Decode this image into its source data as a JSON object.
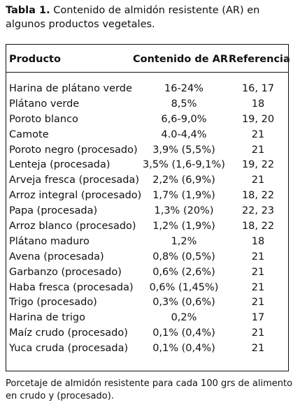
{
  "caption": {
    "label": "Tabla 1.",
    "text": "Contenido de almidón resistente (AR) en algunos productos vegetales."
  },
  "table": {
    "headers": {
      "product": "Producto",
      "content": "Contenido de AR",
      "reference": "Referencia"
    },
    "rows": [
      {
        "product": "Harina de plátano verde",
        "content": "16-24%",
        "reference": "16, 17"
      },
      {
        "product": "Plátano verde",
        "content": "8,5%",
        "reference": "18"
      },
      {
        "product": "Poroto blanco",
        "content": "6,6-9,0%",
        "reference": "19, 20"
      },
      {
        "product": "Camote",
        "content": "4.0-4,4%",
        "reference": "21"
      },
      {
        "product": "Poroto negro (procesado)",
        "content": "3,9% (5,5%)",
        "reference": "21"
      },
      {
        "product": "Lenteja (procesada)",
        "content": "3,5% (1,6-9,1%)",
        "reference": "19, 22"
      },
      {
        "product": "Arveja fresca (procesada)",
        "content": "2,2% (6,9%)",
        "reference": "21"
      },
      {
        "product": "Arroz integral (procesado)",
        "content": "1,7% (1,9%)",
        "reference": "18, 22"
      },
      {
        "product": "Papa (procesada)",
        "content": "1,3% (20%)",
        "reference": "22, 23"
      },
      {
        "product": "Arroz blanco (procesado)",
        "content": "1,2% (1,9%)",
        "reference": "18, 22"
      },
      {
        "product": "Plátano maduro",
        "content": "1,2%",
        "reference": "18"
      },
      {
        "product": "Avena (procesada)",
        "content": "0,8% (0,5%)",
        "reference": "21"
      },
      {
        "product": "Garbanzo (procesado)",
        "content": "0,6% (2,6%)",
        "reference": "21"
      },
      {
        "product": "Haba fresca (procesada)",
        "content": "0,6% (1,45%)",
        "reference": "21"
      },
      {
        "product": "Trigo (procesado)",
        "content": "0,3% (0,6%)",
        "reference": "21"
      },
      {
        "product": "Harina de trigo",
        "content": "0,2%",
        "reference": "17"
      },
      {
        "product": "Maíz crudo (procesado)",
        "content": "0,1% (0,4%)",
        "reference": "21"
      },
      {
        "product": "Yuca cruda (procesada)",
        "content": "0,1% (0,4%)",
        "reference": "21"
      }
    ]
  },
  "footnote": "Porcetaje de almidón resistente para cada 100 grs de alimento en crudo y (procesado)."
}
